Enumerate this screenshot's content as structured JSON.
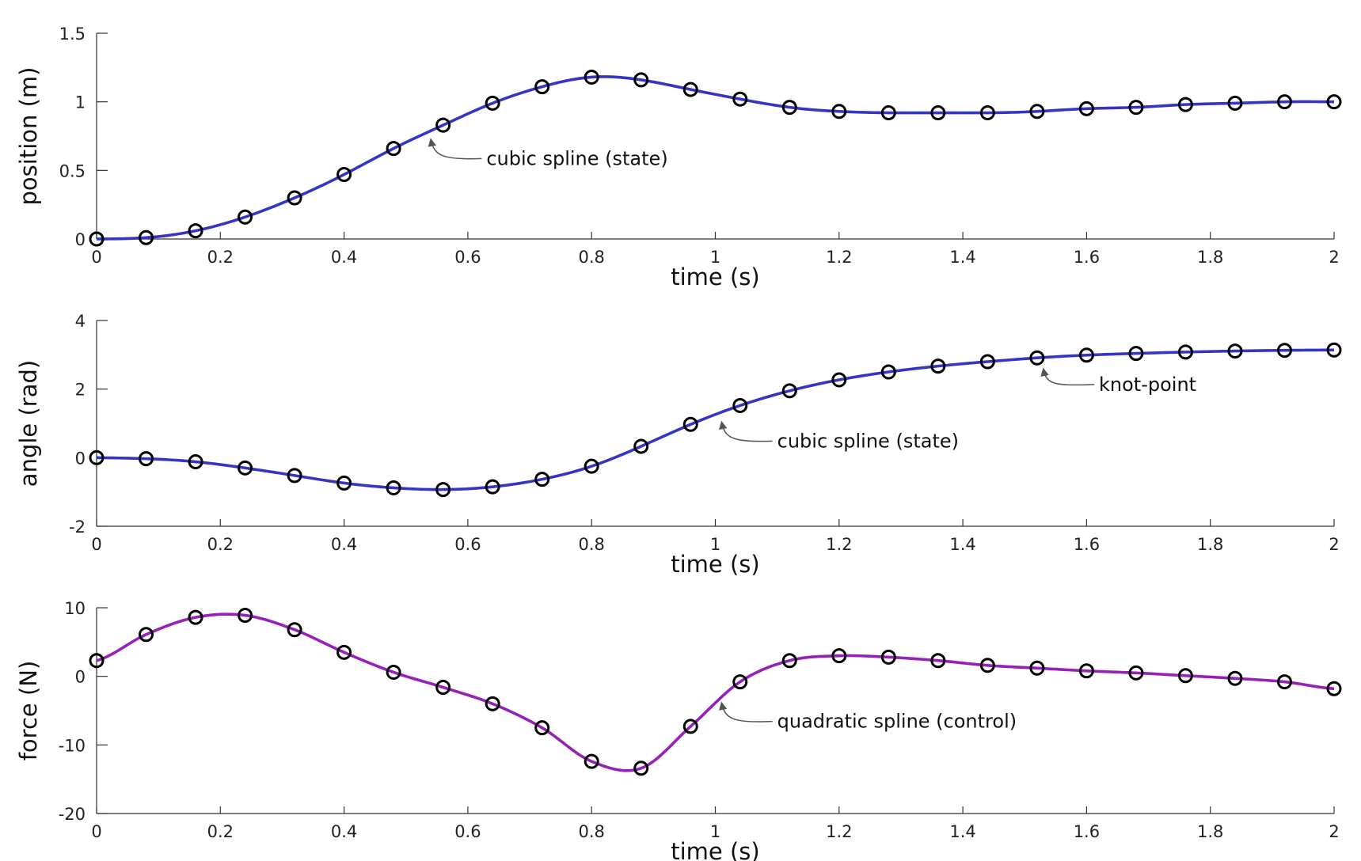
{
  "chart_data": [
    {
      "type": "line",
      "ylabel": "position (m)",
      "xlabel": "time (s)",
      "xlim": [
        0,
        2
      ],
      "ylim": [
        0,
        1.5
      ],
      "xticks": [
        0,
        0.2,
        0.4,
        0.6,
        0.8,
        1,
        1.2,
        1.4,
        1.6,
        1.8,
        2
      ],
      "xtick_labels": [
        "0",
        "0.2",
        "0.4",
        "0.6",
        "0.8",
        "1",
        "1.2",
        "1.4",
        "1.6",
        "1.8",
        "2"
      ],
      "yticks": [
        0,
        0.5,
        1,
        1.5
      ],
      "ytick_labels": [
        "0",
        "0.5",
        "1",
        "1.5"
      ],
      "line_color": "#3535c4",
      "interp": "cubic",
      "knots_x": [
        0,
        0.08,
        0.16,
        0.24,
        0.32,
        0.4,
        0.48,
        0.56,
        0.64,
        0.72,
        0.8,
        0.88,
        0.96,
        1.04,
        1.12,
        1.2,
        1.28,
        1.36,
        1.44,
        1.52,
        1.6,
        1.68,
        1.76,
        1.84,
        1.92,
        2
      ],
      "knots_y": [
        0.0,
        0.01,
        0.06,
        0.16,
        0.3,
        0.47,
        0.66,
        0.83,
        0.99,
        1.11,
        1.18,
        1.16,
        1.09,
        1.02,
        0.96,
        0.93,
        0.92,
        0.92,
        0.92,
        0.93,
        0.95,
        0.96,
        0.98,
        0.99,
        1.0,
        1.0
      ],
      "annotations": [
        {
          "text": "cubic spline (state)",
          "x": 0.54,
          "y": 0.73,
          "tx": 0.63,
          "ty": 0.54
        }
      ]
    },
    {
      "type": "line",
      "ylabel": "angle (rad)",
      "xlabel": "time (s)",
      "xlim": [
        0,
        2
      ],
      "ylim": [
        -2,
        4
      ],
      "xticks": [
        0,
        0.2,
        0.4,
        0.6,
        0.8,
        1,
        1.2,
        1.4,
        1.6,
        1.8,
        2
      ],
      "xtick_labels": [
        "0",
        "0.2",
        "0.4",
        "0.6",
        "0.8",
        "1",
        "1.2",
        "1.4",
        "1.6",
        "1.8",
        "2"
      ],
      "yticks": [
        -2,
        0,
        2,
        4
      ],
      "ytick_labels": [
        "-2",
        "0",
        "2",
        "4"
      ],
      "line_color": "#3535c4",
      "interp": "cubic",
      "knots_x": [
        0,
        0.08,
        0.16,
        0.24,
        0.32,
        0.4,
        0.48,
        0.56,
        0.64,
        0.72,
        0.8,
        0.88,
        0.96,
        1.04,
        1.12,
        1.2,
        1.28,
        1.36,
        1.44,
        1.52,
        1.6,
        1.68,
        1.76,
        1.84,
        1.92,
        2
      ],
      "knots_y": [
        0.0,
        -0.03,
        -0.12,
        -0.3,
        -0.52,
        -0.74,
        -0.88,
        -0.93,
        -0.85,
        -0.63,
        -0.25,
        0.33,
        0.97,
        1.52,
        1.95,
        2.27,
        2.5,
        2.67,
        2.8,
        2.91,
        2.99,
        3.04,
        3.08,
        3.11,
        3.13,
        3.14
      ],
      "annotations": [
        {
          "text": "cubic spline (state)",
          "x": 1.01,
          "y": 1.05,
          "tx": 1.1,
          "ty": 0.3
        },
        {
          "text": "knot-point",
          "x": 1.53,
          "y": 2.6,
          "tx": 1.62,
          "ty": 1.95
        }
      ]
    },
    {
      "type": "line",
      "ylabel": "force (N)",
      "xlabel": "time (s)",
      "xlim": [
        0,
        2
      ],
      "ylim": [
        -20,
        10
      ],
      "xticks": [
        0,
        0.2,
        0.4,
        0.6,
        0.8,
        1,
        1.2,
        1.4,
        1.6,
        1.8,
        2
      ],
      "xtick_labels": [
        "0",
        "0.2",
        "0.4",
        "0.6",
        "0.8",
        "1",
        "1.2",
        "1.4",
        "1.6",
        "1.8",
        "2"
      ],
      "yticks": [
        -20,
        -10,
        0,
        10
      ],
      "ytick_labels": [
        "-20",
        "-10",
        "0",
        "10"
      ],
      "line_color": "#9620b8",
      "interp": "quadratic",
      "knots_x": [
        0,
        0.08,
        0.16,
        0.24,
        0.32,
        0.4,
        0.48,
        0.56,
        0.64,
        0.72,
        0.8,
        0.88,
        0.96,
        1.04,
        1.12,
        1.2,
        1.28,
        1.36,
        1.44,
        1.52,
        1.6,
        1.68,
        1.76,
        1.84,
        1.92,
        2
      ],
      "knots_y": [
        2.3,
        6.1,
        8.6,
        8.9,
        6.8,
        3.5,
        0.6,
        -1.6,
        -4.0,
        -7.5,
        -12.4,
        -13.4,
        -7.3,
        -0.8,
        2.3,
        3.0,
        2.8,
        2.3,
        1.6,
        1.2,
        0.8,
        0.5,
        0.1,
        -0.3,
        -0.8,
        -1.8
      ],
      "annotations": [
        {
          "text": "quadratic spline (control)",
          "x": 1.01,
          "y": -3.8,
          "tx": 1.1,
          "ty": -7.5
        }
      ]
    }
  ]
}
